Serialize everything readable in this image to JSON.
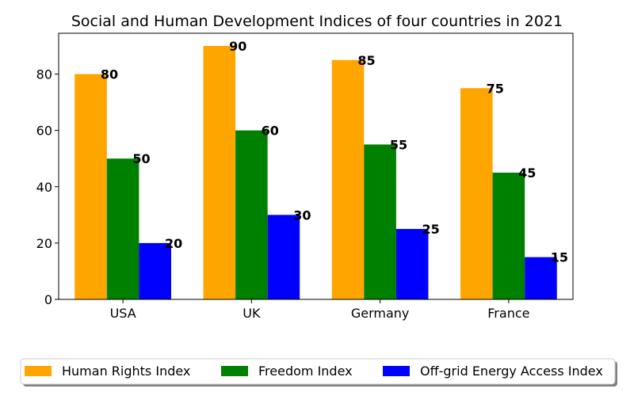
{
  "chart_data": {
    "type": "bar",
    "title": "Social and Human Development Indices of four countries in 2021",
    "xlabel": "",
    "ylabel": "",
    "categories": [
      "USA",
      "UK",
      "Germany",
      "France"
    ],
    "series": [
      {
        "name": "Human Rights Index",
        "values": [
          80,
          90,
          85,
          75
        ],
        "color": "#ffa500"
      },
      {
        "name": "Freedom Index",
        "values": [
          50,
          60,
          55,
          45
        ],
        "color": "#008000"
      },
      {
        "name": "Off-grid Energy Access Index",
        "values": [
          20,
          30,
          25,
          15
        ],
        "color": "#0000ff"
      }
    ],
    "ylim": [
      0,
      94.5
    ],
    "yticks": [
      0,
      20,
      40,
      60,
      80
    ],
    "grid": false,
    "legend_position": "bottom-center",
    "data_labels": true
  }
}
